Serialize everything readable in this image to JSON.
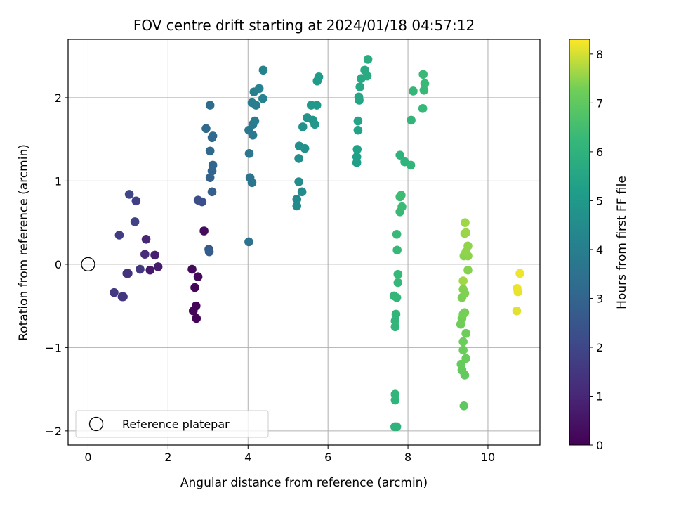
{
  "chart_data": {
    "type": "scatter",
    "title": "FOV centre drift starting at 2024/01/18 04:57:12",
    "xlabel": "Angular distance from reference (arcmin)",
    "ylabel": "Rotation from reference (arcmin)",
    "xlim": [
      -0.5,
      11.3
    ],
    "ylim": [
      -2.17,
      2.7
    ],
    "xticks": [
      0,
      2,
      4,
      6,
      8,
      10
    ],
    "yticks": [
      -2,
      -1,
      0,
      1,
      2
    ],
    "xtick_labels": [
      "0",
      "2",
      "4",
      "6",
      "8",
      "10"
    ],
    "ytick_labels": [
      "−2",
      "−1",
      "0",
      "1",
      "2"
    ],
    "grid": true,
    "colormap": "viridis",
    "colorbar": {
      "label": "Hours from first FF file",
      "range": [
        0,
        8.3
      ],
      "ticks": [
        0,
        1,
        2,
        3,
        4,
        5,
        6,
        7,
        8
      ],
      "tick_labels": [
        "0",
        "1",
        "2",
        "3",
        "4",
        "5",
        "6",
        "7",
        "8"
      ]
    },
    "legend": {
      "location": "lower-left",
      "entries": [
        "Reference platepar"
      ]
    },
    "reference_point": {
      "x": 0,
      "y": 0
    },
    "points": [
      {
        "x": 2.71,
        "y": -0.65,
        "t": 0.05
      },
      {
        "x": 2.63,
        "y": -0.56,
        "t": 0.08
      },
      {
        "x": 2.7,
        "y": -0.5,
        "t": 0.1
      },
      {
        "x": 2.67,
        "y": -0.28,
        "t": 0.13
      },
      {
        "x": 2.75,
        "y": -0.15,
        "t": 0.18
      },
      {
        "x": 2.6,
        "y": -0.06,
        "t": 0.22
      },
      {
        "x": 2.9,
        "y": 0.4,
        "t": 0.3
      },
      {
        "x": 1.55,
        "y": -0.07,
        "t": 0.6
      },
      {
        "x": 1.75,
        "y": -0.03,
        "t": 0.7
      },
      {
        "x": 1.67,
        "y": 0.11,
        "t": 0.75
      },
      {
        "x": 1.45,
        "y": 0.3,
        "t": 1.0
      },
      {
        "x": 1.42,
        "y": 0.12,
        "t": 1.1
      },
      {
        "x": 0.97,
        "y": -0.11,
        "t": 1.3
      },
      {
        "x": 1.0,
        "y": -0.11,
        "t": 1.35
      },
      {
        "x": 0.88,
        "y": -0.39,
        "t": 1.4
      },
      {
        "x": 0.85,
        "y": -0.39,
        "t": 1.45
      },
      {
        "x": 1.3,
        "y": -0.06,
        "t": 1.5
      },
      {
        "x": 0.65,
        "y": -0.34,
        "t": 1.6
      },
      {
        "x": 0.78,
        "y": 0.35,
        "t": 1.7
      },
      {
        "x": 1.2,
        "y": 0.76,
        "t": 1.8
      },
      {
        "x": 1.17,
        "y": 0.51,
        "t": 1.9
      },
      {
        "x": 1.03,
        "y": 0.84,
        "t": 2.0
      },
      {
        "x": 2.75,
        "y": 0.77,
        "t": 2.2
      },
      {
        "x": 2.85,
        "y": 0.75,
        "t": 2.3
      },
      {
        "x": 3.02,
        "y": 0.18,
        "t": 2.6
      },
      {
        "x": 3.03,
        "y": 0.15,
        "t": 2.7
      },
      {
        "x": 3.1,
        "y": 0.87,
        "t": 2.8
      },
      {
        "x": 3.05,
        "y": 1.04,
        "t": 2.9
      },
      {
        "x": 3.1,
        "y": 1.12,
        "t": 3.0
      },
      {
        "x": 3.12,
        "y": 1.19,
        "t": 3.05
      },
      {
        "x": 3.05,
        "y": 1.36,
        "t": 3.1
      },
      {
        "x": 3.1,
        "y": 1.52,
        "t": 3.15
      },
      {
        "x": 3.12,
        "y": 1.54,
        "t": 3.2
      },
      {
        "x": 2.95,
        "y": 1.63,
        "t": 3.25
      },
      {
        "x": 3.05,
        "y": 1.91,
        "t": 3.3
      },
      {
        "x": 4.02,
        "y": 0.27,
        "t": 3.5
      },
      {
        "x": 4.05,
        "y": 1.04,
        "t": 3.6
      },
      {
        "x": 4.1,
        "y": 0.98,
        "t": 3.65
      },
      {
        "x": 4.03,
        "y": 1.33,
        "t": 3.7
      },
      {
        "x": 4.02,
        "y": 1.61,
        "t": 3.75
      },
      {
        "x": 4.12,
        "y": 1.55,
        "t": 3.8
      },
      {
        "x": 4.12,
        "y": 1.68,
        "t": 3.85
      },
      {
        "x": 4.17,
        "y": 1.72,
        "t": 3.9
      },
      {
        "x": 4.1,
        "y": 1.94,
        "t": 3.95
      },
      {
        "x": 4.2,
        "y": 1.91,
        "t": 4.0
      },
      {
        "x": 4.15,
        "y": 2.07,
        "t": 4.05
      },
      {
        "x": 4.28,
        "y": 2.11,
        "t": 4.1
      },
      {
        "x": 4.37,
        "y": 1.99,
        "t": 4.15
      },
      {
        "x": 4.38,
        "y": 2.33,
        "t": 4.2
      },
      {
        "x": 5.22,
        "y": 0.78,
        "t": 4.4
      },
      {
        "x": 5.22,
        "y": 0.7,
        "t": 4.45
      },
      {
        "x": 5.35,
        "y": 0.87,
        "t": 4.5
      },
      {
        "x": 5.27,
        "y": 0.99,
        "t": 4.55
      },
      {
        "x": 5.27,
        "y": 1.27,
        "t": 4.6
      },
      {
        "x": 5.28,
        "y": 1.42,
        "t": 4.65
      },
      {
        "x": 5.42,
        "y": 1.39,
        "t": 4.7
      },
      {
        "x": 5.37,
        "y": 1.65,
        "t": 4.75
      },
      {
        "x": 5.48,
        "y": 1.76,
        "t": 4.8
      },
      {
        "x": 5.62,
        "y": 1.73,
        "t": 4.85
      },
      {
        "x": 5.67,
        "y": 1.68,
        "t": 4.9
      },
      {
        "x": 5.58,
        "y": 1.91,
        "t": 4.95
      },
      {
        "x": 5.72,
        "y": 1.91,
        "t": 5.0
      },
      {
        "x": 5.73,
        "y": 2.2,
        "t": 5.05
      },
      {
        "x": 5.77,
        "y": 2.25,
        "t": 5.1
      },
      {
        "x": 6.72,
        "y": 1.22,
        "t": 5.2
      },
      {
        "x": 6.72,
        "y": 1.29,
        "t": 5.25
      },
      {
        "x": 6.73,
        "y": 1.38,
        "t": 5.3
      },
      {
        "x": 6.75,
        "y": 1.61,
        "t": 5.35
      },
      {
        "x": 6.75,
        "y": 1.72,
        "t": 5.4
      },
      {
        "x": 6.78,
        "y": 1.97,
        "t": 5.45
      },
      {
        "x": 6.77,
        "y": 2.01,
        "t": 5.5
      },
      {
        "x": 6.8,
        "y": 2.13,
        "t": 5.55
      },
      {
        "x": 6.83,
        "y": 2.23,
        "t": 5.6
      },
      {
        "x": 6.92,
        "y": 2.33,
        "t": 5.65
      },
      {
        "x": 6.98,
        "y": 2.26,
        "t": 5.7
      },
      {
        "x": 7.0,
        "y": 2.46,
        "t": 5.75
      },
      {
        "x": 7.67,
        "y": -1.95,
        "t": 6.0
      },
      {
        "x": 7.72,
        "y": -1.95,
        "t": 6.02
      },
      {
        "x": 7.68,
        "y": -1.63,
        "t": 6.05
      },
      {
        "x": 7.68,
        "y": -1.56,
        "t": 6.08
      },
      {
        "x": 7.68,
        "y": -0.75,
        "t": 6.1
      },
      {
        "x": 7.68,
        "y": -0.68,
        "t": 6.12
      },
      {
        "x": 7.7,
        "y": -0.6,
        "t": 6.15
      },
      {
        "x": 7.65,
        "y": -0.38,
        "t": 6.18
      },
      {
        "x": 7.72,
        "y": -0.4,
        "t": 6.2
      },
      {
        "x": 7.75,
        "y": -0.22,
        "t": 6.22
      },
      {
        "x": 7.75,
        "y": -0.12,
        "t": 6.25
      },
      {
        "x": 7.73,
        "y": 0.17,
        "t": 6.28
      },
      {
        "x": 7.72,
        "y": 0.36,
        "t": 6.3
      },
      {
        "x": 7.8,
        "y": 0.63,
        "t": 6.32
      },
      {
        "x": 7.85,
        "y": 0.69,
        "t": 6.35
      },
      {
        "x": 7.8,
        "y": 0.81,
        "t": 6.38
      },
      {
        "x": 7.83,
        "y": 0.83,
        "t": 6.4
      },
      {
        "x": 7.8,
        "y": 1.31,
        "t": 6.0
      },
      {
        "x": 7.92,
        "y": 1.23,
        "t": 6.05
      },
      {
        "x": 8.07,
        "y": 1.19,
        "t": 6.1
      },
      {
        "x": 8.08,
        "y": 1.73,
        "t": 6.15
      },
      {
        "x": 8.13,
        "y": 2.08,
        "t": 6.2
      },
      {
        "x": 8.37,
        "y": 1.87,
        "t": 6.25
      },
      {
        "x": 8.4,
        "y": 2.09,
        "t": 6.28
      },
      {
        "x": 8.42,
        "y": 2.17,
        "t": 6.3
      },
      {
        "x": 8.38,
        "y": 2.28,
        "t": 6.32
      },
      {
        "x": 9.4,
        "y": -1.7,
        "t": 7.0
      },
      {
        "x": 9.42,
        "y": -1.33,
        "t": 7.05
      },
      {
        "x": 9.35,
        "y": -1.27,
        "t": 7.1
      },
      {
        "x": 9.33,
        "y": -1.2,
        "t": 7.12
      },
      {
        "x": 9.45,
        "y": -1.13,
        "t": 7.15
      },
      {
        "x": 9.38,
        "y": -1.03,
        "t": 7.18
      },
      {
        "x": 9.38,
        "y": -0.93,
        "t": 7.2
      },
      {
        "x": 9.45,
        "y": -0.83,
        "t": 7.22
      },
      {
        "x": 9.32,
        "y": -0.72,
        "t": 7.25
      },
      {
        "x": 9.35,
        "y": -0.65,
        "t": 7.28
      },
      {
        "x": 9.38,
        "y": -0.6,
        "t": 7.3
      },
      {
        "x": 9.42,
        "y": -0.58,
        "t": 7.32
      },
      {
        "x": 9.35,
        "y": -0.4,
        "t": 7.35
      },
      {
        "x": 9.42,
        "y": -0.35,
        "t": 7.38
      },
      {
        "x": 9.38,
        "y": -0.3,
        "t": 7.4
      },
      {
        "x": 9.5,
        "y": -0.07,
        "t": 7.42
      },
      {
        "x": 9.4,
        "y": 0.1,
        "t": 7.45
      },
      {
        "x": 9.5,
        "y": 0.1,
        "t": 7.48
      },
      {
        "x": 9.45,
        "y": 0.15,
        "t": 7.5
      },
      {
        "x": 9.5,
        "y": 0.22,
        "t": 7.52
      },
      {
        "x": 9.42,
        "y": 0.37,
        "t": 7.55
      },
      {
        "x": 9.45,
        "y": 0.38,
        "t": 7.58
      },
      {
        "x": 9.43,
        "y": 0.5,
        "t": 7.6
      },
      {
        "x": 9.38,
        "y": -0.2,
        "t": 7.62
      },
      {
        "x": 10.72,
        "y": -0.56,
        "t": 8.1
      },
      {
        "x": 10.75,
        "y": -0.33,
        "t": 8.15
      },
      {
        "x": 10.73,
        "y": -0.29,
        "t": 8.18
      },
      {
        "x": 10.8,
        "y": -0.11,
        "t": 8.2
      }
    ]
  }
}
